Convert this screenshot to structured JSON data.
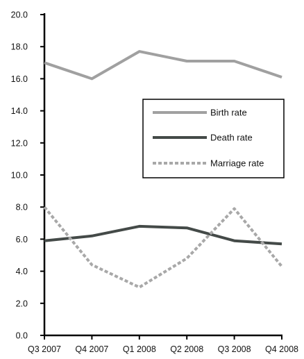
{
  "chart_data": {
    "type": "line",
    "title": "",
    "xlabel": "",
    "ylabel": "",
    "categories": [
      "Q3 2007",
      "Q4 2007",
      "Q1 2008",
      "Q2 2008",
      "Q3 2008",
      "Q4 2008"
    ],
    "ylim": [
      0,
      20
    ],
    "y_ticks": [
      "0.0",
      "2.0",
      "4.0",
      "6.0",
      "8.0",
      "10.0",
      "12.0",
      "14.0",
      "16.0",
      "18.0",
      "20.0"
    ],
    "grid": false,
    "legend_position": "right",
    "series": [
      {
        "name": "Birth rate",
        "values": [
          17.0,
          16.0,
          17.7,
          17.1,
          17.1,
          16.1
        ],
        "color": "#a0a0a0",
        "style": "solid"
      },
      {
        "name": "Death rate",
        "values": [
          5.9,
          6.2,
          6.8,
          6.7,
          5.9,
          5.7
        ],
        "color": "#444a48",
        "style": "solid"
      },
      {
        "name": "Marriage rate",
        "values": [
          8.0,
          4.4,
          3.0,
          4.8,
          7.9,
          4.3
        ],
        "color": "#a8a8a8",
        "style": "dashed"
      }
    ]
  }
}
